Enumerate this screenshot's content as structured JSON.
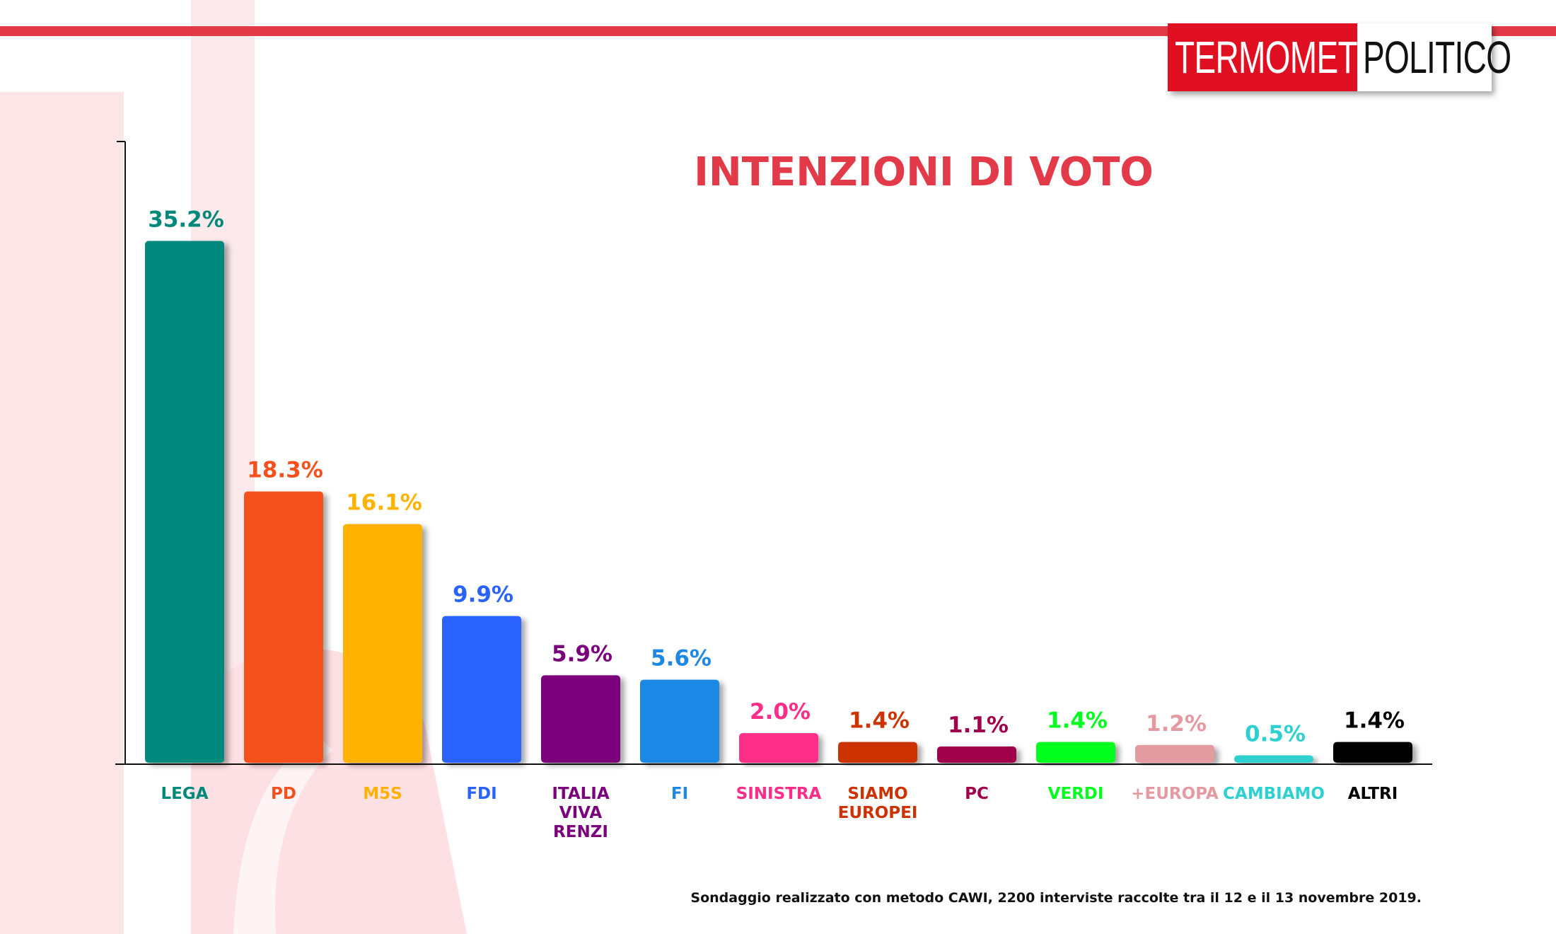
{
  "brand": {
    "part1": "TERMOMETRO",
    "part2": "POLITICO"
  },
  "colors": {
    "accent": "#e23a48",
    "logo_red": "#e10f22"
  },
  "chart_data": {
    "type": "bar",
    "title": "INTENZIONI DI VOTO",
    "categories": [
      [
        "LEGA"
      ],
      [
        "PD"
      ],
      [
        "M5S"
      ],
      [
        "FDI"
      ],
      [
        "ITALIA",
        "VIVA",
        "RENZI"
      ],
      [
        "FI"
      ],
      [
        "SINISTRA"
      ],
      [
        "SIAMO",
        "EUROPEI"
      ],
      [
        "PC"
      ],
      [
        "VERDI"
      ],
      [
        "+EUROPA"
      ],
      [
        "CAMBIAMO"
      ],
      [
        "ALTRI"
      ]
    ],
    "values": [
      35.2,
      18.3,
      16.1,
      9.9,
      5.9,
      5.6,
      2.0,
      1.4,
      1.1,
      1.4,
      1.2,
      0.5,
      1.4
    ],
    "value_labels": [
      "35.2%",
      "18.3%",
      "16.1%",
      "9.9%",
      "5.9%",
      "5.6%",
      "2.0%",
      "1.4%",
      "1.1%",
      "1.4%",
      "1.2%",
      "0.5%",
      "1.4%"
    ],
    "bar_colors": [
      "#00897b",
      "#f4511e",
      "#ffb300",
      "#2962ff",
      "#7b007b",
      "#1e88e5",
      "#ff2d87",
      "#cc3300",
      "#a0004a",
      "#00ff1e",
      "#e39aa0",
      "#2ed1cf",
      "#000000"
    ],
    "ylim": [
      0,
      42
    ],
    "grid": false,
    "legend": "none"
  },
  "footnote": "Sondaggio realizzato con metodo CAWI, 2200 interviste raccolte tra il 12 e il 13 novembre 2019."
}
